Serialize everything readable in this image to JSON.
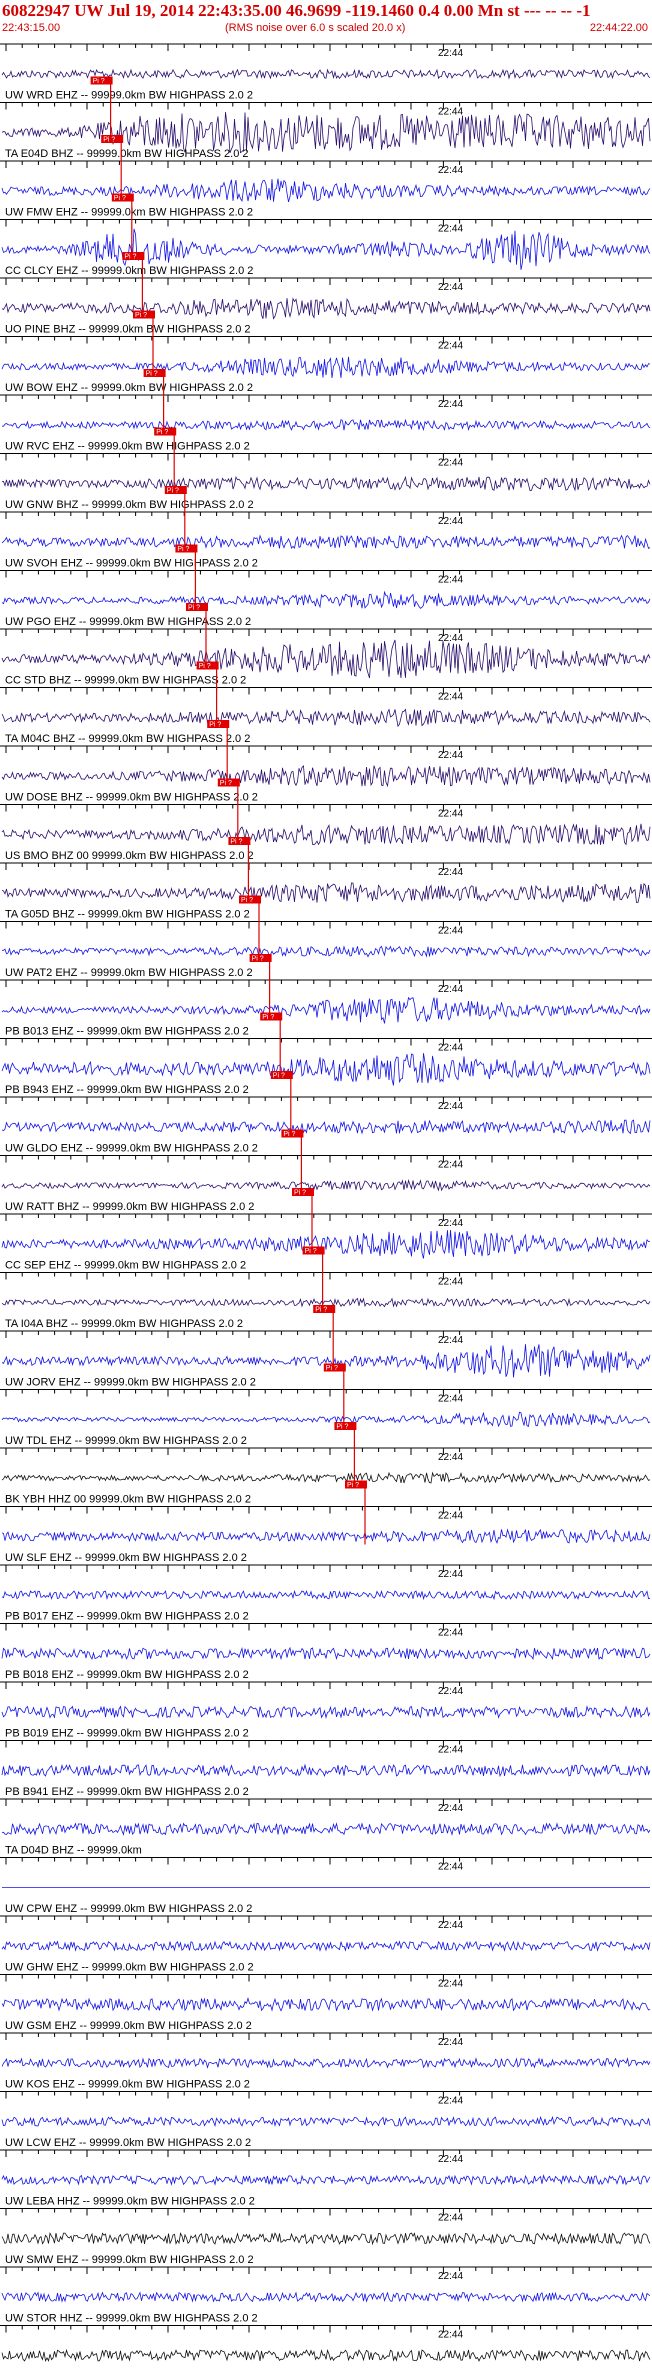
{
  "header": {
    "title": "60822947 UW Jul 19, 2014 22:43:35.00   46.9699 -119.1460  0.4 0.00 Mn st --- -- --  -1",
    "start_time": "22:43:15.00",
    "scale_note": "(RMS noise over 6.0 s scaled 20.0 x)",
    "end_time": "22:44:22.00"
  },
  "colors": {
    "header_red": "#d40000",
    "pick_red": "#e00000",
    "blue": "#1515e6",
    "navy": "#2b0f6e",
    "black": "#111111",
    "tick": "#000000"
  },
  "chart_data": {
    "type": "line",
    "time_axis": {
      "start": "22:43:15.00",
      "end": "22:44:22.00",
      "minute_label": "22:44"
    },
    "traces": [
      {
        "label": "",
        "color": "navy",
        "pick": "",
        "env": [
          0.18,
          0.2,
          0.18
        ]
      },
      {
        "label": "UW WRD EHZ -- 99999.0km BW  HIGHPASS  2.0  2",
        "color": "navy",
        "pick": "Pi ?",
        "env": [
          0.18,
          0.22,
          0.85,
          0.95,
          0.9,
          0.85,
          0.8,
          0.85,
          0.8,
          0.7
        ]
      },
      {
        "label": "TA E04D BHZ -- 99999.0km BW  HIGHPASS  2.0  2",
        "color": "blue",
        "pick": "Pi ?",
        "env": [
          0.18,
          0.22,
          0.6,
          0.3,
          0.2,
          0.2
        ]
      },
      {
        "label": "UW FMW EHZ -- 99999.0km BW  HIGHPASS  2.0  2",
        "color": "blue",
        "pick": "Pi ?",
        "env": [
          0.15,
          0.2,
          1.0,
          0.3,
          0.2,
          0.2,
          0.4,
          0.2,
          1.0,
          0.3,
          0.2
        ]
      },
      {
        "label": "CC CLCY EHZ -- 99999.0km BW  HIGHPASS  2.0  2",
        "color": "navy",
        "pick": "Pi ?",
        "env": [
          0.2,
          0.25,
          0.5,
          0.35,
          0.25,
          0.2
        ]
      },
      {
        "label": "UO PINE BHZ -- 99999.0km BW  HIGHPASS  2.0  2",
        "color": "blue",
        "pick": "Pi ?",
        "env": [
          0.15,
          0.15,
          0.55,
          0.25,
          0.15
        ]
      },
      {
        "label": "UW BOW EHZ -- 99999.0km BW  HIGHPASS  2.0  2",
        "color": "blue",
        "pick": "Pi ?",
        "env": [
          0.15,
          0.15,
          0.25,
          0.2,
          0.15
        ]
      },
      {
        "label": "UW RVC EHZ -- 99999.0km BW  HIGHPASS  2.0  2",
        "color": "navy",
        "pick": "Pi ?",
        "env": [
          0.18,
          0.18,
          0.3,
          0.25,
          0.3,
          0.35,
          0.2
        ]
      },
      {
        "label": "UW GNW BHZ -- 99999.0km BW  HIGHPASS  2.0  2",
        "color": "blue",
        "pick": "Pi ?",
        "env": [
          0.2,
          0.2,
          0.3,
          0.3,
          0.25,
          0.3
        ]
      },
      {
        "label": "UW SVOH EHZ -- 99999.0km BW  HIGHPASS  2.0  2",
        "color": "blue",
        "pick": "Pi ?",
        "env": [
          0.15,
          0.15,
          0.2,
          0.4,
          0.2,
          0.15
        ]
      },
      {
        "label": "UW PGO EHZ -- 99999.0km BW  HIGHPASS  2.0  2",
        "color": "navy",
        "pick": "Pi ?",
        "env": [
          0.2,
          0.2,
          0.3,
          0.6,
          0.75,
          1.0,
          0.7,
          0.4,
          0.2
        ]
      },
      {
        "label": "CC STD BHZ -- 99999.0km BW  HIGHPASS  2.0  2",
        "color": "navy",
        "pick": "Pi ?",
        "env": [
          0.2,
          0.2,
          0.3,
          0.4,
          0.3,
          0.25
        ]
      },
      {
        "label": "TA M04C BHZ -- 99999.0km BW  HIGHPASS  2.0  2",
        "color": "navy",
        "pick": "Pi ?",
        "env": [
          0.18,
          0.18,
          0.3,
          0.5,
          0.45,
          0.4,
          0.35
        ]
      },
      {
        "label": "UW DOSE BHZ -- 99999.0km BW  HIGHPASS  2.0  2",
        "color": "navy",
        "pick": "Pi ?",
        "env": [
          0.2,
          0.2,
          0.3,
          0.5,
          0.4,
          0.45,
          0.5
        ]
      },
      {
        "label": "US BMO BHZ 00 99999.0km BW  HIGHPASS  2.0  2",
        "color": "navy",
        "pick": "Pi ?",
        "env": [
          0.2,
          0.2,
          0.25,
          0.5,
          0.35,
          0.4,
          0.45
        ]
      },
      {
        "label": "TA G05D BHZ -- 99999.0km BW  HIGHPASS  2.0  2",
        "color": "blue",
        "pick": "Pi ?",
        "env": [
          0.15,
          0.15,
          0.2,
          0.25,
          0.2,
          0.2
        ]
      },
      {
        "label": "UW PAT2 EHZ -- 99999.0km BW  HIGHPASS  2.0  2",
        "color": "blue",
        "pick": "Pi ?",
        "env": [
          0.15,
          0.15,
          0.2,
          0.7,
          0.3,
          0.2
        ]
      },
      {
        "label": "PB B013 EHZ -- 99999.0km BW  HIGHPASS  2.0  2",
        "color": "blue",
        "pick": "Pi ?",
        "env": [
          0.3,
          0.3,
          0.3,
          0.8,
          0.4,
          0.3
        ]
      },
      {
        "label": "PB B943 EHZ -- 99999.0km BW  HIGHPASS  2.0  2",
        "color": "blue",
        "pick": "Pi ?",
        "env": [
          0.2,
          0.2,
          0.25,
          0.3,
          0.25,
          0.35
        ]
      },
      {
        "label": "UW GLDO EHZ -- 99999.0km BW  HIGHPASS  2.0  2",
        "color": "navy",
        "pick": "Pi ?",
        "env": [
          0.12,
          0.12,
          0.15,
          0.25,
          0.15,
          0.12
        ]
      },
      {
        "label": "UW RATT BHZ -- 99999.0km BW  HIGHPASS  2.0  2",
        "color": "blue",
        "pick": "Pi ?",
        "env": [
          0.2,
          0.2,
          0.25,
          0.4,
          0.7,
          0.4,
          0.25
        ]
      },
      {
        "label": "CC SEP EHZ -- 99999.0km BW  HIGHPASS  2.0  2",
        "color": "navy",
        "pick": "Pi ?",
        "env": [
          0.12,
          0.12,
          0.15,
          0.2,
          0.15,
          0.12
        ]
      },
      {
        "label": "TA I04A BHZ -- 99999.0km BW  HIGHPASS  2.0  2",
        "color": "blue",
        "pick": "Pi ?",
        "env": [
          0.2,
          0.2,
          0.2,
          0.25,
          0.85,
          0.4
        ]
      },
      {
        "label": "UW JORV EHZ -- 99999.0km BW  HIGHPASS  2.0  2",
        "color": "blue",
        "pick": "Pi ?",
        "env": [
          0.1,
          0.1,
          0.1,
          0.15,
          0.35,
          0.15
        ]
      },
      {
        "label": "UW TDL EHZ -- 99999.0km BW  HIGHPASS  2.0  2",
        "color": "black",
        "pick": "Pi ?",
        "env": [
          0.12,
          0.12,
          0.15,
          0.25,
          0.2,
          0.15
        ]
      },
      {
        "label": "BK YBH HHZ 00 99999.0km BW  HIGHPASS  2.0  2",
        "color": "blue",
        "pick": "Pi ?",
        "env": [
          0.2,
          0.2,
          0.2,
          0.25,
          0.35,
          0.25
        ]
      },
      {
        "label": "UW SLF EHZ -- 99999.0km BW  HIGHPASS  2.0  2",
        "color": "blue",
        "pick": "",
        "env": [
          0.18,
          0.18
        ]
      },
      {
        "label": "PB B017 EHZ -- 99999.0km BW  HIGHPASS  2.0  2",
        "color": "blue",
        "pick": "",
        "env": [
          0.25,
          0.25
        ]
      },
      {
        "label": "PB B018 EHZ -- 99999.0km BW  HIGHPASS  2.0  2",
        "color": "blue",
        "pick": "",
        "env": [
          0.25,
          0.25
        ]
      },
      {
        "label": "PB B019 EHZ -- 99999.0km BW  HIGHPASS  2.0  2",
        "color": "blue",
        "pick": "",
        "env": [
          0.25,
          0.25
        ]
      },
      {
        "label": "PB B941 EHZ -- 99999.0km BW  HIGHPASS  2.0  2",
        "color": "blue",
        "pick": "",
        "env": [
          0.25,
          0.25
        ]
      },
      {
        "label": "TA D04D BHZ -- 99999.0km",
        "color": "blue",
        "pick": "",
        "env": [
          0.0,
          0.0
        ]
      },
      {
        "label": "UW CPW EHZ -- 99999.0km BW  HIGHPASS  2.0  2",
        "color": "blue",
        "pick": "",
        "env": [
          0.2,
          0.2
        ]
      },
      {
        "label": "UW GHW EHZ -- 99999.0km BW  HIGHPASS  2.0  2",
        "color": "blue",
        "pick": "",
        "env": [
          0.25,
          0.3,
          0.25
        ]
      },
      {
        "label": "UW GSM EHZ -- 99999.0km BW  HIGHPASS  2.0  2",
        "color": "blue",
        "pick": "",
        "env": [
          0.2,
          0.2
        ]
      },
      {
        "label": "UW KOS EHZ -- 99999.0km BW  HIGHPASS  2.0  2",
        "color": "blue",
        "pick": "",
        "env": [
          0.2,
          0.2
        ]
      },
      {
        "label": "UW LCW EHZ -- 99999.0km BW  HIGHPASS  2.0  2",
        "color": "blue",
        "pick": "",
        "env": [
          0.2,
          0.2
        ]
      },
      {
        "label": "UW LEBA HHZ -- 99999.0km BW  HIGHPASS  2.0  2",
        "color": "black",
        "pick": "",
        "env": [
          0.25,
          0.25
        ]
      },
      {
        "label": "UW SMW EHZ -- 99999.0km BW  HIGHPASS  2.0  2",
        "color": "blue",
        "pick": "",
        "env": [
          0.2,
          0.2
        ]
      },
      {
        "label": "UW STOR HHZ -- 99999.0km BW  HIGHPASS  2.0  2",
        "color": "black",
        "pick": "",
        "env": [
          0.25,
          0.25
        ]
      }
    ]
  }
}
